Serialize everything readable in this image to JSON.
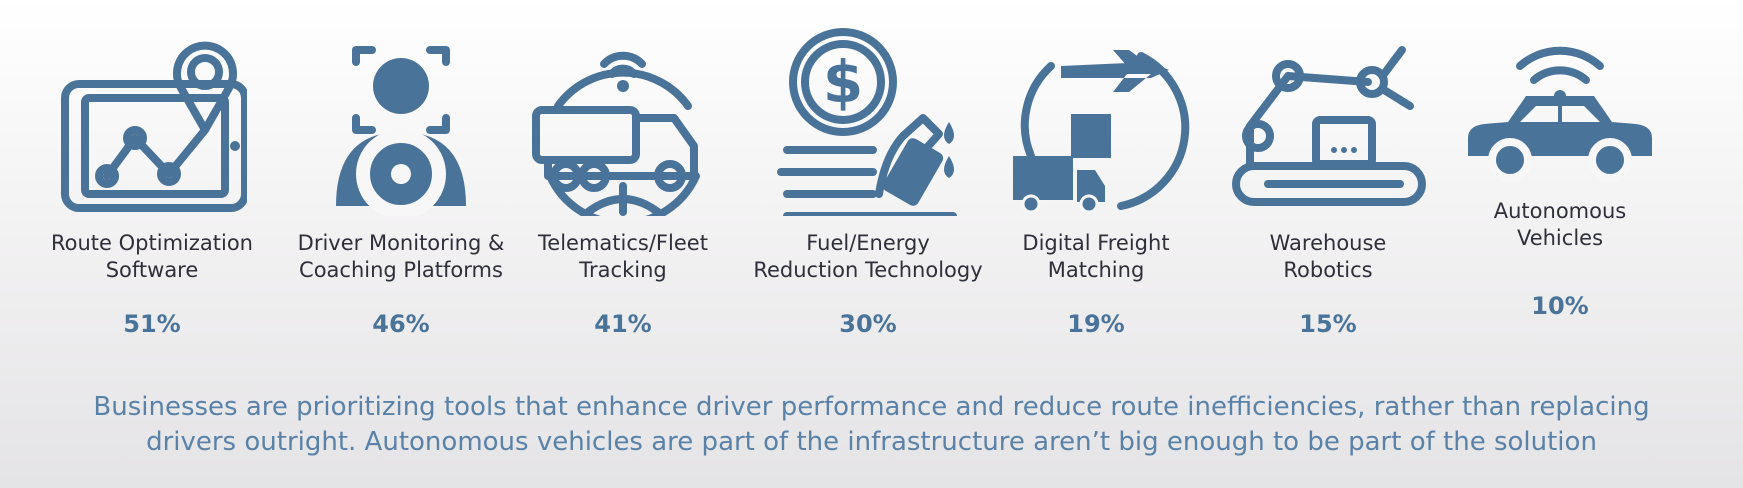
{
  "items": [
    {
      "label": [
        "Route Optimization",
        "Software"
      ],
      "value": "51%"
    },
    {
      "label": [
        "Driver Monitoring &",
        "Coaching Platforms"
      ],
      "value": "46%"
    },
    {
      "label": [
        "Telematics/Fleet",
        "Tracking"
      ],
      "value": "41%"
    },
    {
      "label": [
        "Fuel/Energy",
        "Reduction Technology"
      ],
      "value": "30%"
    },
    {
      "label": [
        "Digital Freight",
        "Matching"
      ],
      "value": "19%"
    },
    {
      "label": [
        "Warehouse",
        "Robotics"
      ],
      "value": "15%"
    },
    {
      "label": [
        "Autonomous",
        "Vehicles"
      ],
      "value": "10%"
    }
  ],
  "footer": [
    "Businesses are prioritizing tools that enhance driver performance and reduce route inefficiencies, rather than replacing",
    "drivers outright. Autonomous vehicles are part of the infrastructure aren’t big enough to be part of the solution"
  ]
}
